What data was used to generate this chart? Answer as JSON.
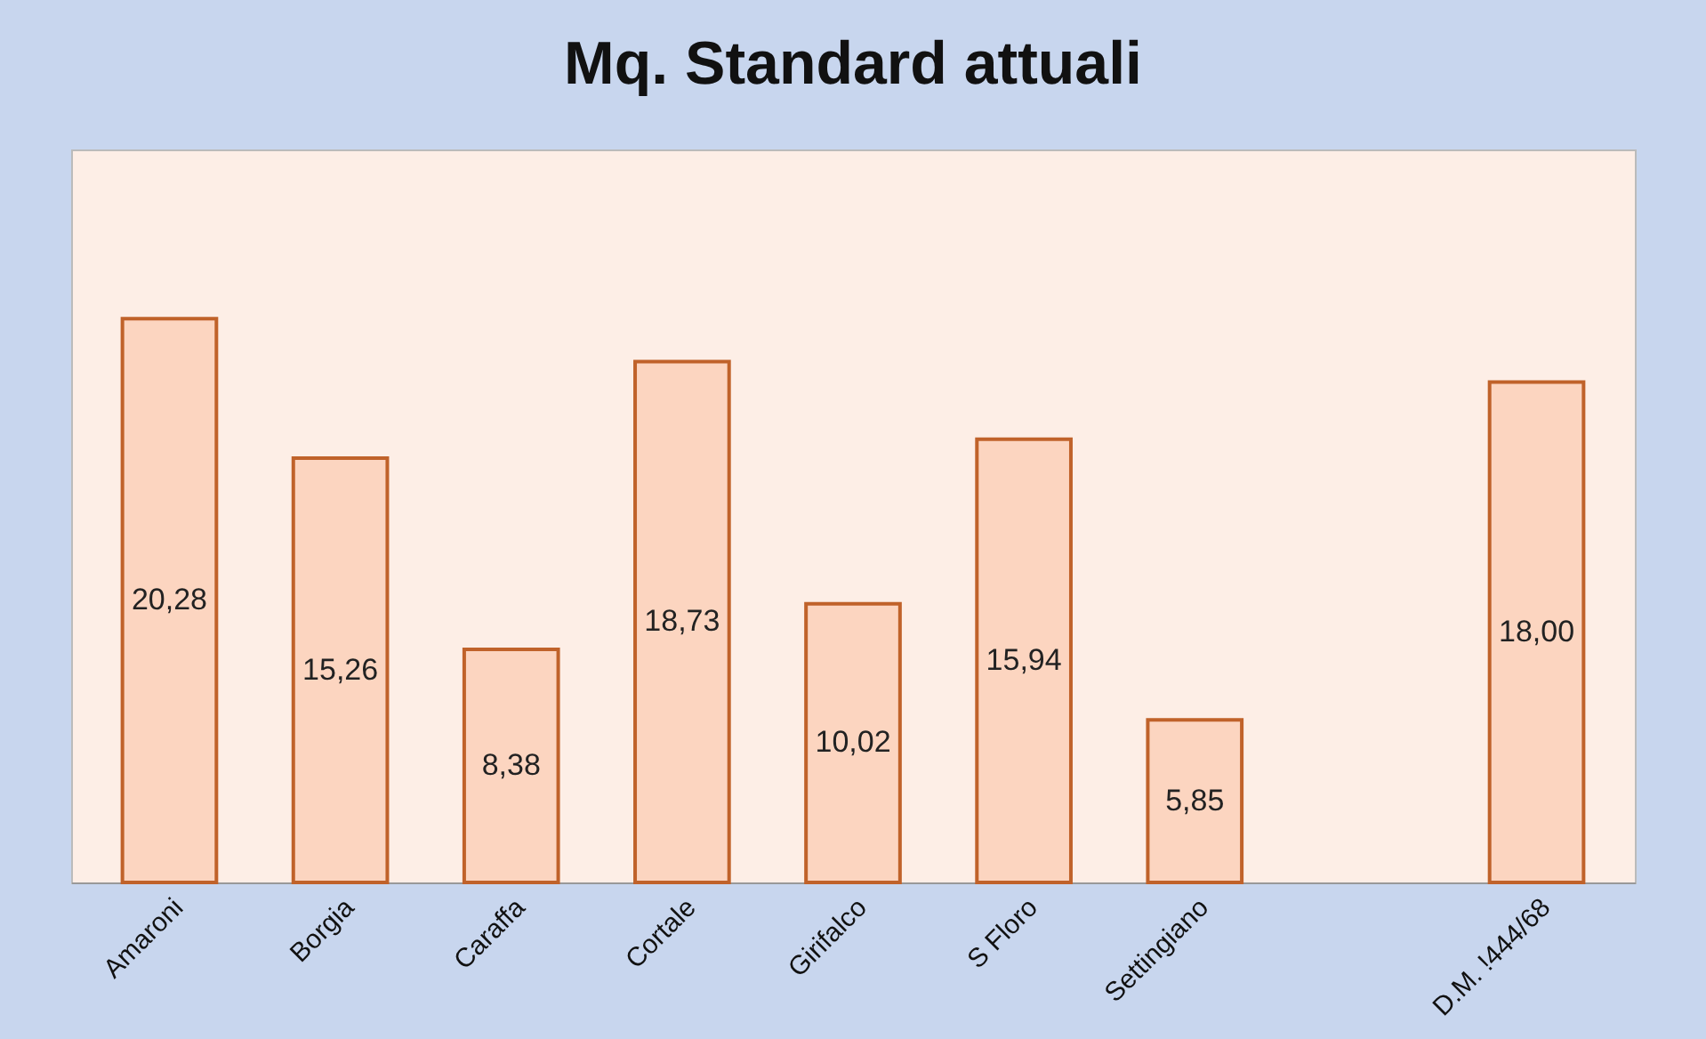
{
  "chart_data": {
    "type": "bar",
    "title": "Mq. Standard attuali",
    "categories": [
      "Amaroni",
      "Borgia",
      "Caraffa",
      "Cortale",
      "Girifalco",
      "S Floro",
      "Settingiano",
      null,
      "D.M. !444/68"
    ],
    "values": [
      20.28,
      15.26,
      8.38,
      18.73,
      10.02,
      15.94,
      5.85,
      null,
      18.0
    ],
    "value_labels": [
      "20,28",
      "15,26",
      "8,38",
      "18,73",
      "10,02",
      "15,94",
      "5,85",
      null,
      "18,00"
    ],
    "color": "#fcd5c0"
  }
}
